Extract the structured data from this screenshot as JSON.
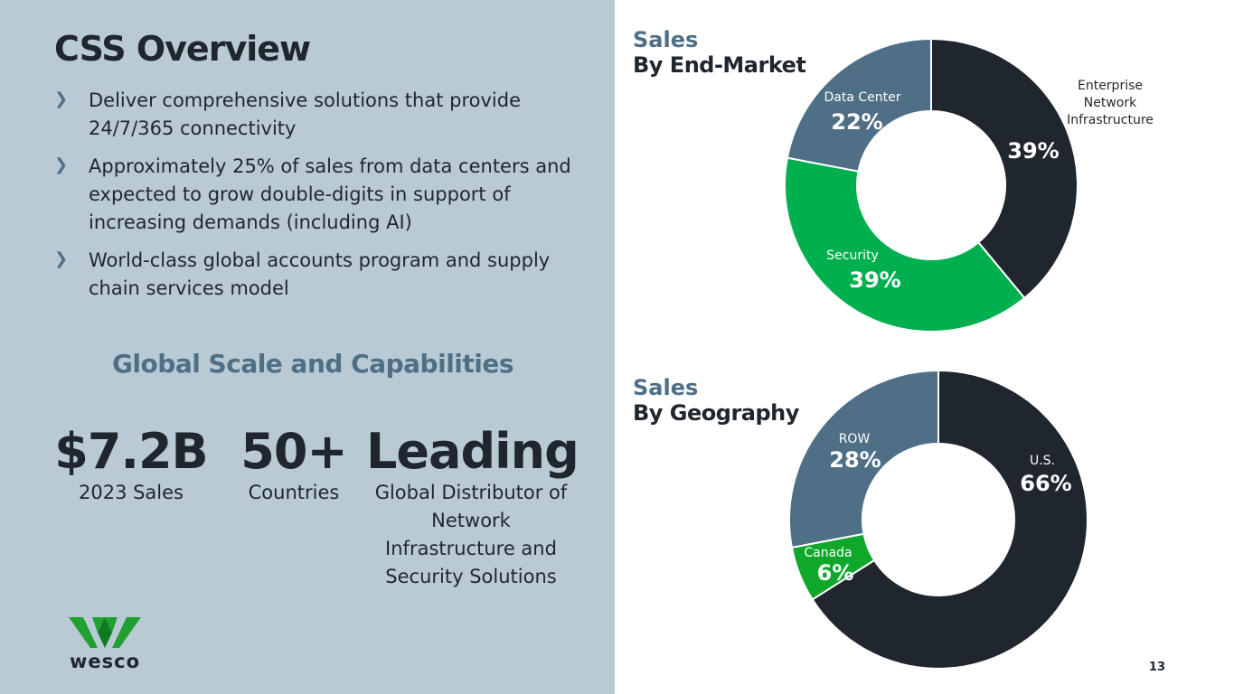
{
  "title": "CSS Overview",
  "bullets": [
    "Deliver comprehensive solutions that provide 24/7/365 connectivity",
    "Approximately 25% of sales from data centers and expected to grow double-digits in support of increasing demands (including AI)",
    "World-class global accounts program and supply chain services model"
  ],
  "bullet_icon": "chevron-right-icon",
  "scale": {
    "heading": "Global Scale and Capabilities",
    "stats": [
      {
        "value": "$7.2B",
        "label": "2023 Sales"
      },
      {
        "value": "50+",
        "label": "Countries"
      },
      {
        "value": "Leading",
        "label": "Global Distributor of Network Infrastructure and Security Solutions"
      }
    ]
  },
  "logo": {
    "text": "wesco",
    "icon": "wesco-w-logo",
    "colors": [
      "#1fa030",
      "#0f7a22"
    ]
  },
  "page_number": "13",
  "colors": {
    "panel": "#b9cad5",
    "dark": "#1f262d",
    "slate": "#4e6f85",
    "green": "#00b04f",
    "green_2": "#0fa82a"
  },
  "chart_data": [
    {
      "type": "pie",
      "donut": true,
      "title": "Sales",
      "subtitle": "By End-Market",
      "slices": [
        {
          "name": "Enterprise Network Infrastructure",
          "value": 39,
          "label": "39%",
          "color": "#1f262d"
        },
        {
          "name": "Security",
          "value": 39,
          "label": "39%",
          "color": "#00b04f"
        },
        {
          "name": "Data Center",
          "value": 22,
          "label": "22%",
          "color": "#4e6f85"
        }
      ]
    },
    {
      "type": "pie",
      "donut": true,
      "title": "Sales",
      "subtitle": "By Geography",
      "slices": [
        {
          "name": "U.S.",
          "value": 66,
          "label": "66%",
          "color": "#1f262d"
        },
        {
          "name": "Canada",
          "value": 6,
          "label": "6%",
          "color": "#0fa82a"
        },
        {
          "name": "ROW",
          "value": 28,
          "label": "28%",
          "color": "#4e6f85"
        }
      ]
    }
  ]
}
